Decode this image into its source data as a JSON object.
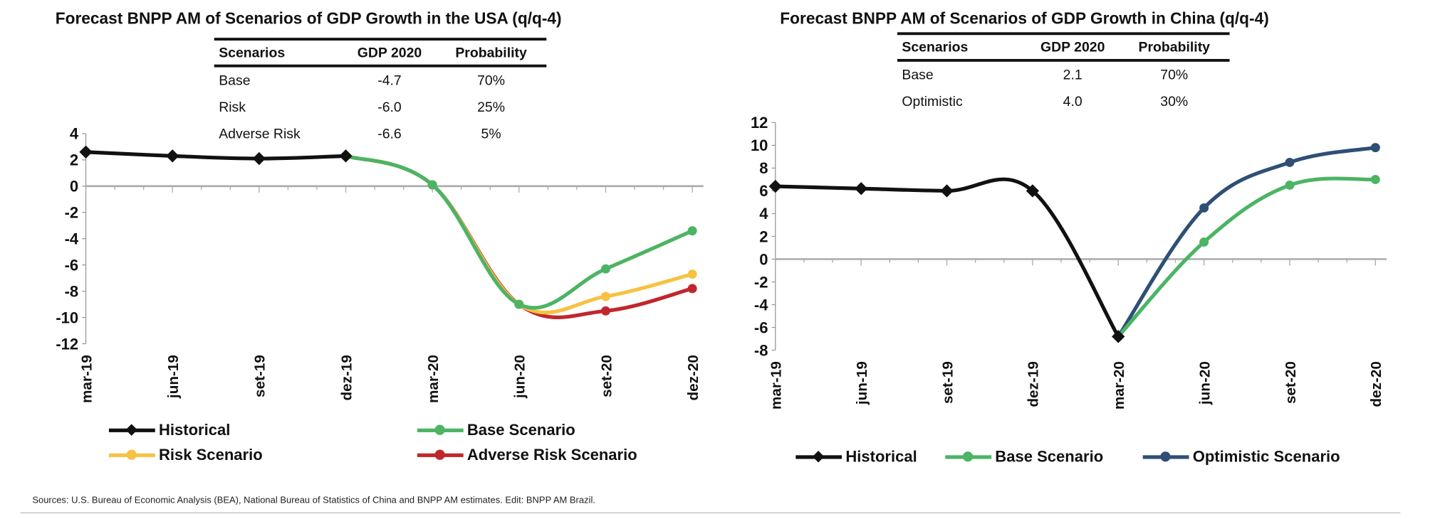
{
  "sources": "Sources: U.S. Bureau of Economic Analysis (BEA), National Bureau of Statistics of China and BNPP AM estimates. Edit: BNPP AM Brazil.",
  "colors": {
    "historical": "#111111",
    "base": "#4cb464",
    "risk": "#f6c243",
    "adverse": "#c0272d",
    "optimistic": "#2f4f75"
  },
  "chart_data": [
    {
      "type": "line",
      "title": "Forecast BNPP AM of Scenarios of GDP Growth in the USA (q/q-4)",
      "table": {
        "headers": [
          "Scenarios",
          "GDP 2020",
          "Probability"
        ],
        "rows": [
          [
            "Base",
            "-4.7",
            "70%"
          ],
          [
            "Risk",
            "-6.0",
            "25%"
          ],
          [
            "Adverse Risk",
            "-6.6",
            "5%"
          ]
        ]
      },
      "categories": [
        "mar-19",
        "jun-19",
        "set-19",
        "dez-19",
        "mar-20",
        "jun-20",
        "set-20",
        "dez-20"
      ],
      "ylim": [
        -12,
        4
      ],
      "yticks": [
        "4",
        "2",
        "0",
        "-2",
        "-4",
        "-6",
        "-8",
        "-10",
        "-12"
      ],
      "series": [
        {
          "name": "Historical",
          "color_key": "historical",
          "marker": "diamond",
          "values": [
            2.6,
            2.3,
            2.1,
            2.3,
            null,
            null,
            null,
            null
          ]
        },
        {
          "name": "Base Scenario",
          "color_key": "base",
          "marker": "circle",
          "values": [
            null,
            null,
            null,
            2.3,
            0.1,
            -9.0,
            -6.3,
            -3.4
          ]
        },
        {
          "name": "Risk Scenario",
          "color_key": "risk",
          "marker": "circle",
          "values": [
            null,
            null,
            null,
            2.3,
            0.1,
            -9.0,
            -8.4,
            -6.7
          ]
        },
        {
          "name": "Adverse Risk Scenario",
          "color_key": "adverse",
          "marker": "circle",
          "values": [
            null,
            null,
            null,
            2.3,
            0.1,
            -9.0,
            -9.5,
            -7.8
          ]
        }
      ]
    },
    {
      "type": "line",
      "title": "Forecast BNPP AM of Scenarios of GDP Growth in China (q/q-4)",
      "table": {
        "headers": [
          "Scenarios",
          "GDP 2020",
          "Probability"
        ],
        "rows": [
          [
            "Base",
            "2.1",
            "70%"
          ],
          [
            "Optimistic",
            "4.0",
            "30%"
          ]
        ]
      },
      "categories": [
        "mar-19",
        "jun-19",
        "set-19",
        "dez-19",
        "mar-20",
        "jun-20",
        "set-20",
        "dez-20"
      ],
      "ylim": [
        -8,
        12
      ],
      "yticks": [
        "12",
        "10",
        "8",
        "6",
        "4",
        "2",
        "0",
        "-2",
        "-4",
        "-6",
        "-8"
      ],
      "series": [
        {
          "name": "Historical",
          "color_key": "historical",
          "marker": "diamond",
          "values": [
            6.4,
            6.2,
            6.0,
            6.0,
            -6.8,
            null,
            null,
            null
          ]
        },
        {
          "name": "Base Scenario",
          "color_key": "base",
          "marker": "circle",
          "values": [
            null,
            null,
            null,
            null,
            -6.8,
            1.5,
            6.5,
            7.0
          ]
        },
        {
          "name": "Optimistic Scenario",
          "color_key": "optimistic",
          "marker": "circle",
          "values": [
            null,
            null,
            null,
            null,
            -6.8,
            4.5,
            8.5,
            9.8
          ]
        }
      ]
    }
  ]
}
